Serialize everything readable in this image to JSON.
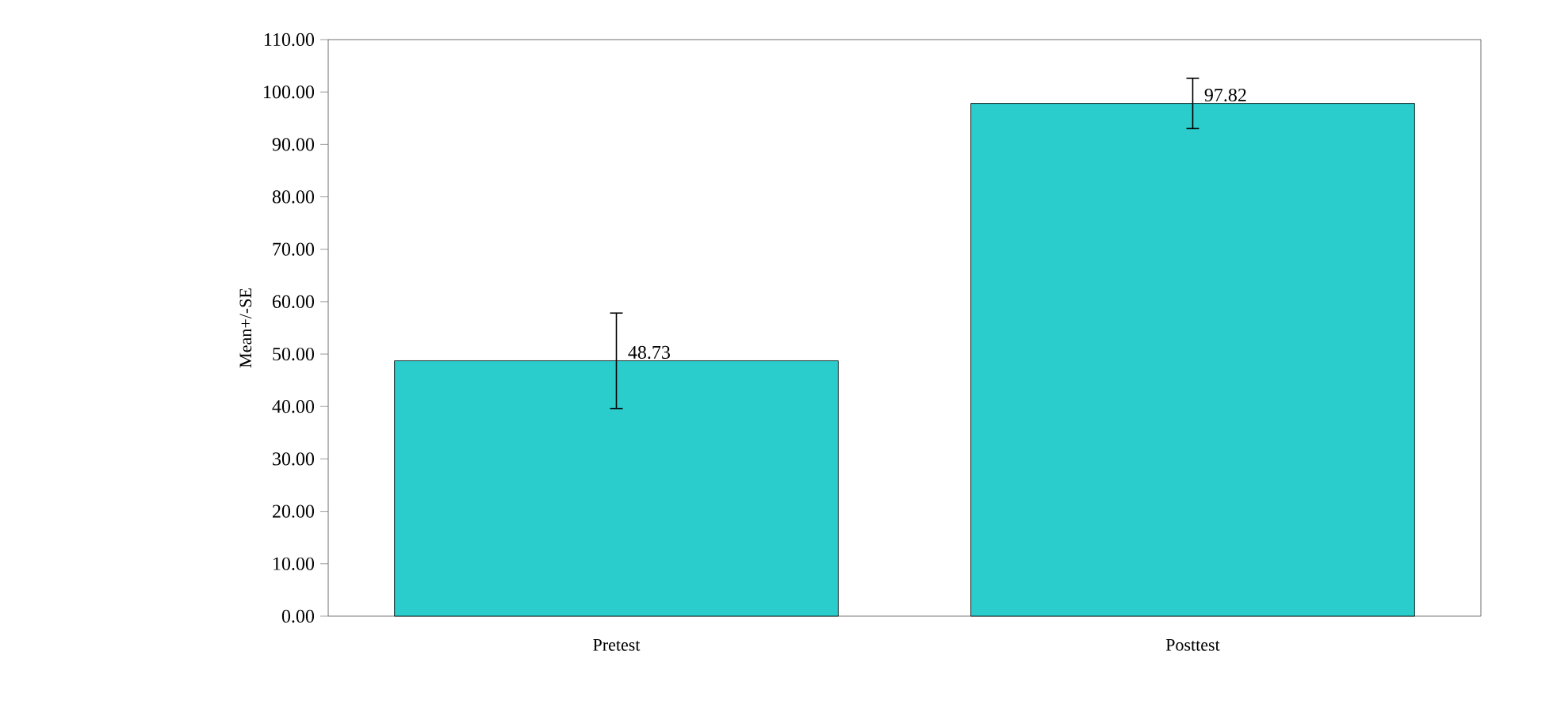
{
  "chart_data": {
    "type": "bar",
    "ylabel": "Mean+/-SE",
    "categories": [
      "Pretest",
      "Posttest"
    ],
    "values": [
      48.73,
      97.82
    ],
    "errors": [
      9.1,
      4.8
    ],
    "color": "#2acccc",
    "data_labels": true,
    "ylim": [
      0,
      110
    ],
    "yticks": [
      {
        "value": 0,
        "label": "0.00"
      },
      {
        "value": 10,
        "label": "10.00"
      },
      {
        "value": 20,
        "label": "20.00"
      },
      {
        "value": 30,
        "label": "30.00"
      },
      {
        "value": 40,
        "label": "40.00"
      },
      {
        "value": 50,
        "label": "50.00"
      },
      {
        "value": 60,
        "label": "60.00"
      },
      {
        "value": 70,
        "label": "70.00"
      },
      {
        "value": 80,
        "label": "80.00"
      },
      {
        "value": 90,
        "label": "90.00"
      },
      {
        "value": 100,
        "label": "100.00"
      },
      {
        "value": 110,
        "label": "110.00"
      }
    ],
    "grid": false
  }
}
